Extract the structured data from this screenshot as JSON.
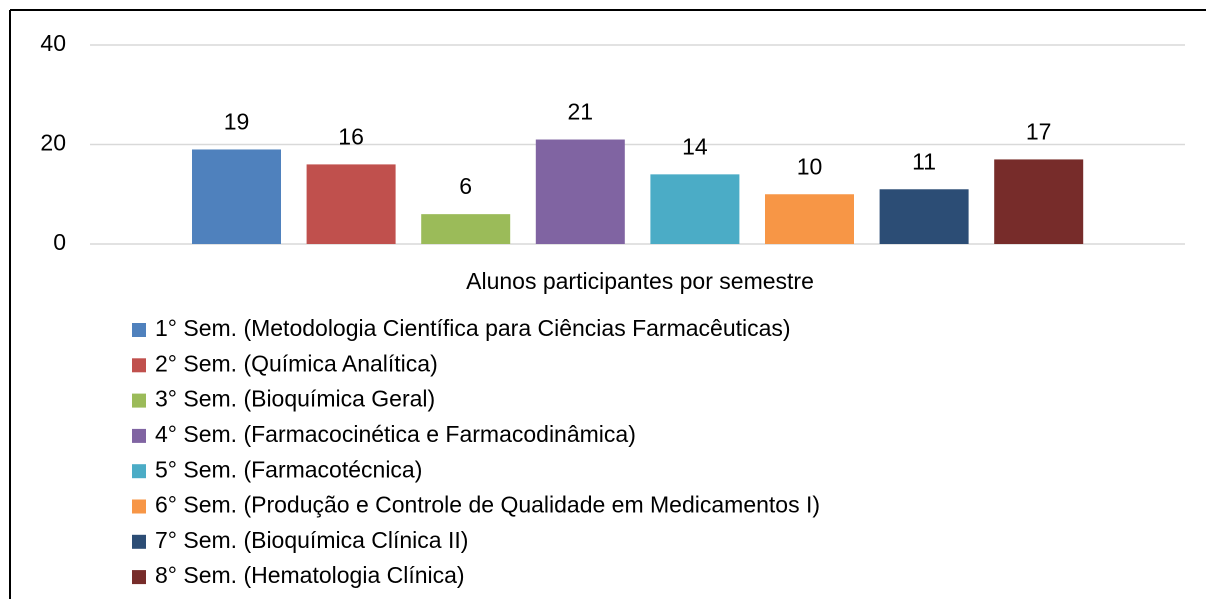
{
  "chart_data": {
    "type": "bar",
    "categories": [
      "Alunos participantes por semestre"
    ],
    "series": [
      {
        "name": "1° Sem. (Metodologia Científica para Ciências Farmacêuticas)",
        "color": "#4f81bd",
        "values": [
          19
        ]
      },
      {
        "name": "2° Sem. (Química Analítica)",
        "color": "#c0504d",
        "values": [
          16
        ]
      },
      {
        "name": "3° Sem. (Bioquímica Geral)",
        "color": "#9bbb59",
        "values": [
          6
        ]
      },
      {
        "name": "4° Sem. (Farmacocinética e Farmacodinâmica)",
        "color": "#8064a2",
        "values": [
          21
        ]
      },
      {
        "name": "5° Sem. (Farmacotécnica)",
        "color": "#4bacc6",
        "values": [
          14
        ]
      },
      {
        "name": "6° Sem. (Produção e Controle de Qualidade em Medicamentos I)",
        "color": "#f79646",
        "values": [
          10
        ]
      },
      {
        "name": "7° Sem. (Bioquímica Clínica II)",
        "color": "#2c4d75",
        "values": [
          11
        ]
      },
      {
        "name": "8° Sem. (Hematologia Clínica)",
        "color": "#772c2a",
        "values": [
          17
        ]
      }
    ],
    "ylim": [
      0,
      40
    ],
    "yticks": [
      0,
      20,
      40
    ],
    "grid": true,
    "legend": "bottom"
  }
}
